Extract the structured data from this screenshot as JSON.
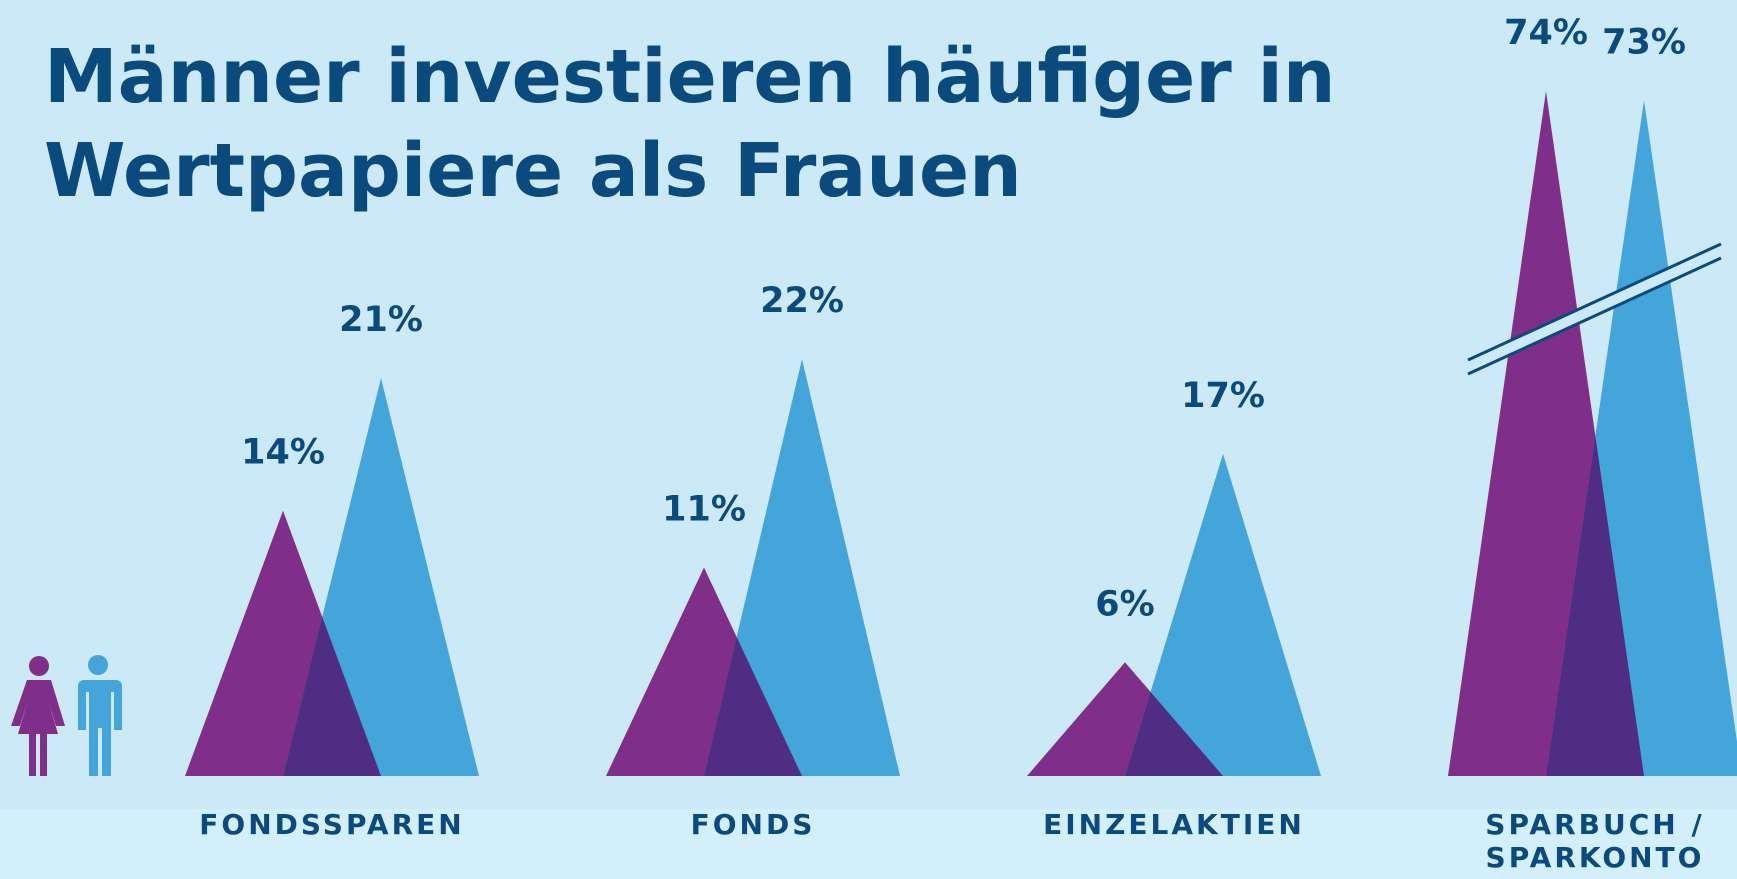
{
  "chart_data": {
    "type": "triangle",
    "title": "Männer investieren häufiger in Wertpapiere als Frauen",
    "categories": [
      "FONDSSPAREN",
      "FONDS",
      "EINZELAKTIEN",
      "SPARBUCH / SPARKONTO"
    ],
    "series": [
      {
        "color": "#7f2f8a",
        "values": [
          14,
          11,
          6,
          74
        ],
        "value_labels": [
          "14%",
          "11%",
          "6%",
          "74%"
        ]
      },
      {
        "color": "#43a5d9",
        "values": [
          21,
          22,
          17,
          73
        ],
        "value_labels": [
          "21%",
          "22%",
          "17%",
          "73%"
        ]
      }
    ],
    "overlap_color": "#4f2d82"
  }
}
